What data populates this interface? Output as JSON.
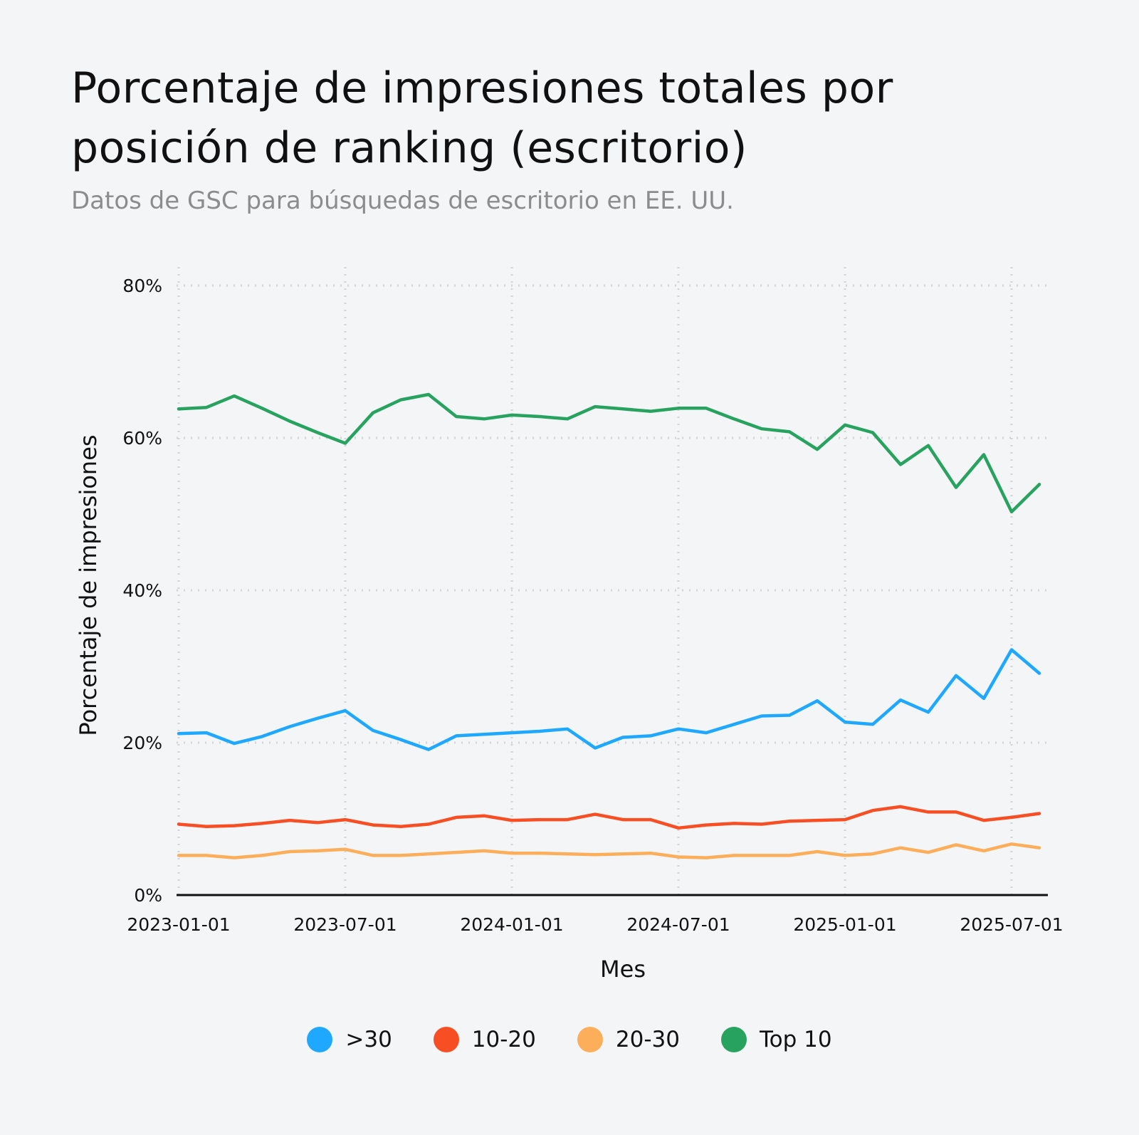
{
  "title": "Porcentaje de impresiones totales por posición de ranking (escritorio)",
  "subtitle": "Datos de GSC para búsquedas de escritorio en EE. UU.",
  "chart_data": {
    "type": "line",
    "xlabel": "Mes",
    "ylabel": "Porcentaje de impresiones",
    "ylim": [
      0,
      80
    ],
    "yticks": [
      "0%",
      "20%",
      "40%",
      "60%",
      "80%"
    ],
    "ytick_values": [
      0,
      20,
      40,
      60,
      80
    ],
    "xticks": [
      "2023-01-01",
      "2023-07-01",
      "2024-01-01",
      "2024-07-01",
      "2025-01-01",
      "2025-07-01"
    ],
    "grid": true,
    "legend_position": "bottom",
    "x": [
      "2023-01-01",
      "2023-02-01",
      "2023-03-01",
      "2023-04-01",
      "2023-05-01",
      "2023-06-01",
      "2023-07-01",
      "2023-08-01",
      "2023-09-01",
      "2023-10-01",
      "2023-11-01",
      "2023-12-01",
      "2024-01-01",
      "2024-02-01",
      "2024-03-01",
      "2024-04-01",
      "2024-05-01",
      "2024-06-01",
      "2024-07-01",
      "2024-08-01",
      "2024-09-01",
      "2024-10-01",
      "2024-11-01",
      "2024-12-01",
      "2025-01-01",
      "2025-02-01",
      "2025-03-01",
      "2025-04-01",
      "2025-05-01",
      "2025-06-01",
      "2025-07-01",
      "2025-08-01"
    ],
    "series": [
      {
        "name": ">30",
        "color": "#1FA8FF",
        "values": [
          21.2,
          21.3,
          19.9,
          20.8,
          22.1,
          23.2,
          24.2,
          21.6,
          20.4,
          19.1,
          20.9,
          21.1,
          21.3,
          21.5,
          21.8,
          19.3,
          20.7,
          20.9,
          21.8,
          21.3,
          22.4,
          23.5,
          23.6,
          25.5,
          22.7,
          22.4,
          25.6,
          24.0,
          28.8,
          25.8,
          32.2,
          29.1
        ]
      },
      {
        "name": "10-20",
        "color": "#F84E23",
        "values": [
          9.3,
          9.0,
          9.1,
          9.4,
          9.8,
          9.5,
          9.9,
          9.2,
          9.0,
          9.3,
          10.2,
          10.4,
          9.8,
          9.9,
          9.9,
          10.6,
          9.9,
          9.9,
          8.8,
          9.2,
          9.4,
          9.3,
          9.7,
          9.8,
          9.9,
          11.1,
          11.6,
          10.9,
          10.9,
          9.8,
          10.2,
          10.7
        ]
      },
      {
        "name": "20-30",
        "color": "#FDAE5A",
        "values": [
          5.2,
          5.2,
          4.9,
          5.2,
          5.7,
          5.8,
          6.0,
          5.2,
          5.2,
          5.4,
          5.6,
          5.8,
          5.5,
          5.5,
          5.4,
          5.3,
          5.4,
          5.5,
          5.0,
          4.9,
          5.2,
          5.2,
          5.2,
          5.7,
          5.2,
          5.4,
          6.2,
          5.6,
          6.6,
          5.8,
          6.7,
          6.2
        ]
      },
      {
        "name": "Top 10",
        "color": "#27A35F",
        "values": [
          63.8,
          64.0,
          65.5,
          63.9,
          62.2,
          60.7,
          59.3,
          63.3,
          65.0,
          65.7,
          62.8,
          62.5,
          63.0,
          62.8,
          62.5,
          64.1,
          63.8,
          63.5,
          63.9,
          63.9,
          62.5,
          61.2,
          60.8,
          58.5,
          61.7,
          60.7,
          56.5,
          59.0,
          53.5,
          57.8,
          50.3,
          53.9
        ]
      }
    ]
  }
}
